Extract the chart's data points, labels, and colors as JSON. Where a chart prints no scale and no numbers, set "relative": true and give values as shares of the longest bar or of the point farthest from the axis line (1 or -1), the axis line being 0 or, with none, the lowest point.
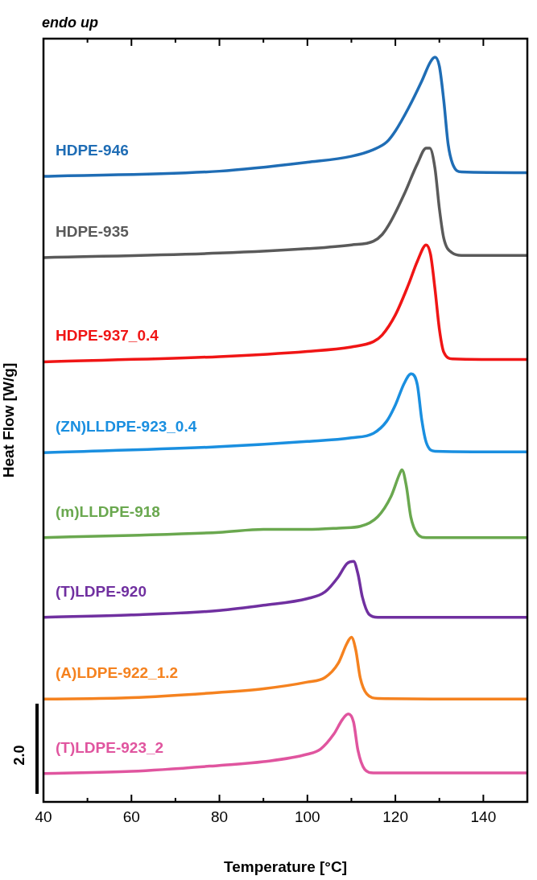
{
  "chart_data": {
    "type": "line",
    "relative": true,
    "xlabel": "Temperature [°C]",
    "ylabel": "Heat Flow [W/g]",
    "xlim": [
      40,
      150
    ],
    "xticks": [
      40,
      {
        "value": 50,
        "label": null
      },
      60,
      {
        "value": 70,
        "label": null
      },
      80,
      {
        "value": 90,
        "label": null
      },
      100,
      {
        "value": 110,
        "label": null
      },
      120,
      {
        "value": 130,
        "label": null
      },
      140
    ],
    "marker": "none",
    "annotations": [
      "endo up",
      "2.0"
    ],
    "series": [
      {
        "name": "HDPE-946",
        "color": "#1f6db5",
        "x": [
          40,
          80,
          100,
          110,
          115,
          118,
          120,
          123,
          126,
          128,
          129,
          130,
          131,
          132,
          133,
          135,
          150
        ],
        "values": [
          0.84,
          0.847,
          0.859,
          0.867,
          0.876,
          0.886,
          0.901,
          0.932,
          0.968,
          0.994,
          1.0,
          0.988,
          0.942,
          0.883,
          0.857,
          0.846,
          0.845
        ]
      },
      {
        "name": "HDPE-935",
        "color": "#5a5a5a",
        "x": [
          40,
          80,
          100,
          110,
          115,
          117,
          119,
          122,
          125,
          127,
          127.8,
          129,
          130,
          131,
          133,
          135,
          150
        ],
        "values": [
          0.731,
          0.737,
          0.743,
          0.748,
          0.753,
          0.762,
          0.78,
          0.816,
          0.857,
          0.878,
          0.878,
          0.851,
          0.797,
          0.757,
          0.737,
          0.734,
          0.734
        ]
      },
      {
        "name": "HDPE-937_0.4",
        "color": "#f01515",
        "x": [
          40,
          80,
          100,
          110,
          115,
          117,
          120,
          123,
          125,
          127,
          128,
          129,
          130,
          131,
          133,
          150
        ],
        "values": [
          0.591,
          0.598,
          0.605,
          0.611,
          0.618,
          0.627,
          0.654,
          0.695,
          0.726,
          0.748,
          0.735,
          0.689,
          0.635,
          0.604,
          0.595,
          0.594
        ]
      },
      {
        "name": "(ZN)LLDPE-923_0.4",
        "color": "#1a8fe0",
        "x": [
          40,
          80,
          100,
          110,
          115,
          118,
          120,
          122,
          123.6,
          125,
          126,
          127,
          129,
          150
        ],
        "values": [
          0.469,
          0.477,
          0.484,
          0.489,
          0.495,
          0.511,
          0.533,
          0.562,
          0.575,
          0.56,
          0.513,
          0.483,
          0.471,
          0.47
        ]
      },
      {
        "name": "(m)LLDPE-918",
        "color": "#6aa84f",
        "x": [
          40,
          60,
          80,
          90,
          100,
          108,
          112,
          116,
          119,
          121,
          121.5,
          122.5,
          123.5,
          125,
          127,
          150
        ],
        "values": [
          0.355,
          0.358,
          0.362,
          0.366,
          0.366,
          0.368,
          0.37,
          0.383,
          0.41,
          0.441,
          0.446,
          0.424,
          0.383,
          0.36,
          0.355,
          0.355
        ]
      },
      {
        "name": "(T)LDPE-920",
        "color": "#7030a0",
        "x": [
          40,
          60,
          80,
          90,
          100,
          104,
          107,
          109,
          110.5,
          111.5,
          112.5,
          114,
          116,
          150
        ],
        "values": [
          0.248,
          0.251,
          0.257,
          0.264,
          0.273,
          0.282,
          0.302,
          0.32,
          0.323,
          0.306,
          0.275,
          0.252,
          0.248,
          0.248
        ]
      },
      {
        "name": "(A)LDPE-922_1.2",
        "color": "#f5821f",
        "x": [
          40,
          60,
          80,
          90,
          100,
          104,
          107,
          109,
          110,
          111,
          112,
          113.5,
          116,
          150
        ],
        "values": [
          0.138,
          0.14,
          0.147,
          0.152,
          0.161,
          0.167,
          0.186,
          0.213,
          0.221,
          0.204,
          0.167,
          0.145,
          0.139,
          0.138
        ]
      },
      {
        "name": "(T)LDPE-923_2",
        "color": "#e0559f",
        "x": [
          40,
          60,
          80,
          90,
          100,
          103,
          106,
          108,
          109.3,
          110.5,
          111.5,
          113,
          115,
          150
        ],
        "values": [
          0.038,
          0.041,
          0.049,
          0.054,
          0.064,
          0.071,
          0.091,
          0.111,
          0.118,
          0.107,
          0.069,
          0.044,
          0.039,
          0.039
        ]
      }
    ]
  }
}
